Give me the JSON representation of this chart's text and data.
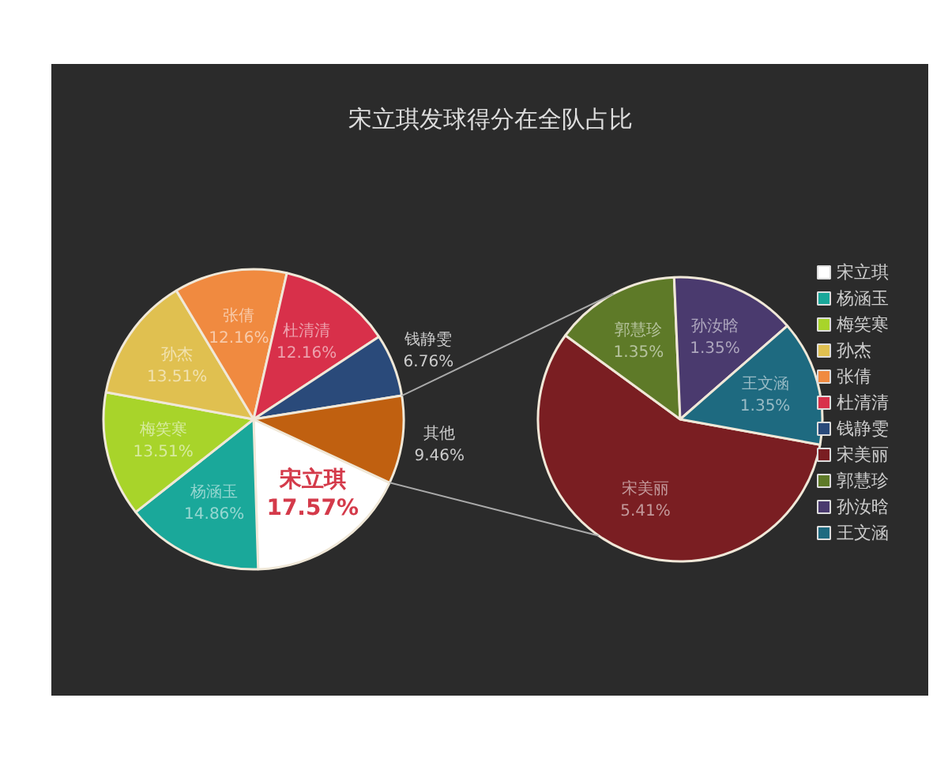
{
  "chart_data": [
    {
      "type": "pie",
      "title": "宋立琪发球得分在全队占比",
      "legend": "right",
      "categories": [
        "宋立琪",
        "杨涵玉",
        "梅笑寒",
        "孙杰",
        "张倩",
        "杜清清",
        "钱静雯",
        "其他"
      ],
      "values": [
        17.57,
        14.86,
        13.51,
        13.51,
        12.16,
        12.16,
        6.76,
        9.46
      ],
      "value_labels": [
        "17.57%",
        "14.86%",
        "13.51%",
        "13.51%",
        "12.16%",
        "12.16%",
        "6.76%",
        "9.46%"
      ],
      "colors": [
        "#ffffff",
        "#1aa89a",
        "#a8d42a",
        "#e0c050",
        "#f08a40",
        "#d8304a",
        "#2a4a7a",
        "#c06010"
      ]
    },
    {
      "type": "pie",
      "legend": "right",
      "categories": [
        "宋美丽",
        "郭慧珍",
        "孙汝晗",
        "王文涵"
      ],
      "values": [
        5.41,
        1.35,
        1.35,
        1.35
      ],
      "value_labels": [
        "5.41%",
        "1.35%",
        "1.35%",
        "1.35%"
      ],
      "colors": [
        "#7a1e22",
        "#5e7a28",
        "#4a3a6e",
        "#1e6a80"
      ]
    }
  ]
}
